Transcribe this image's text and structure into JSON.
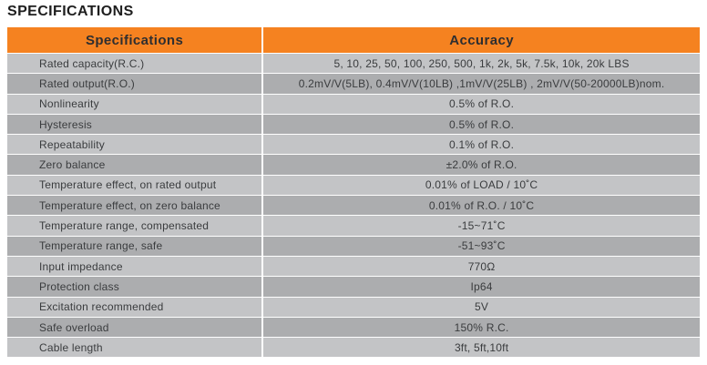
{
  "page": {
    "title": "SPECIFICATIONS"
  },
  "table": {
    "header": {
      "col1": "Specifications",
      "col2": "Accuracy"
    },
    "rows": [
      {
        "label": "Rated capacity(R.C.)",
        "value": "5, 10, 25, 50, 100, 250, 500, 1k, 2k, 5k, 7.5k, 10k, 20k LBS"
      },
      {
        "label": "Rated output(R.O.)",
        "value": "0.2mV/V(5LB), 0.4mV/V(10LB) ,1mV/V(25LB) , 2mV/V(50-20000LB)nom."
      },
      {
        "label": "Nonlinearity",
        "value": "0.5% of R.O."
      },
      {
        "label": "Hysteresis",
        "value": "0.5% of R.O."
      },
      {
        "label": "Repeatability",
        "value": "0.1% of R.O."
      },
      {
        "label": "Zero balance",
        "value": "±2.0% of R.O."
      },
      {
        "label": "Temperature effect, on rated output",
        "value": "0.01% of LOAD / 10˚C"
      },
      {
        "label": "Temperature effect, on zero balance",
        "value": "0.01% of R.O. / 10˚C"
      },
      {
        "label": "Temperature range, compensated",
        "value": "-15~71˚C"
      },
      {
        "label": "Temperature range, safe",
        "value": "-51~93˚C"
      },
      {
        "label": "Input impedance",
        "value": "770Ω"
      },
      {
        "label": "Protection class",
        "value": "Ip64"
      },
      {
        "label": "Excitation recommended",
        "value": "5V"
      },
      {
        "label": "Safe overload",
        "value": "150% R.C."
      },
      {
        "label": "Cable length",
        "value": "3ft, 5ft,10ft"
      }
    ],
    "colors": {
      "header_bg": "#F58220",
      "row_light": "#C3C4C6",
      "row_dark": "#ACADAF",
      "row_text": "#3A3C3E"
    }
  }
}
